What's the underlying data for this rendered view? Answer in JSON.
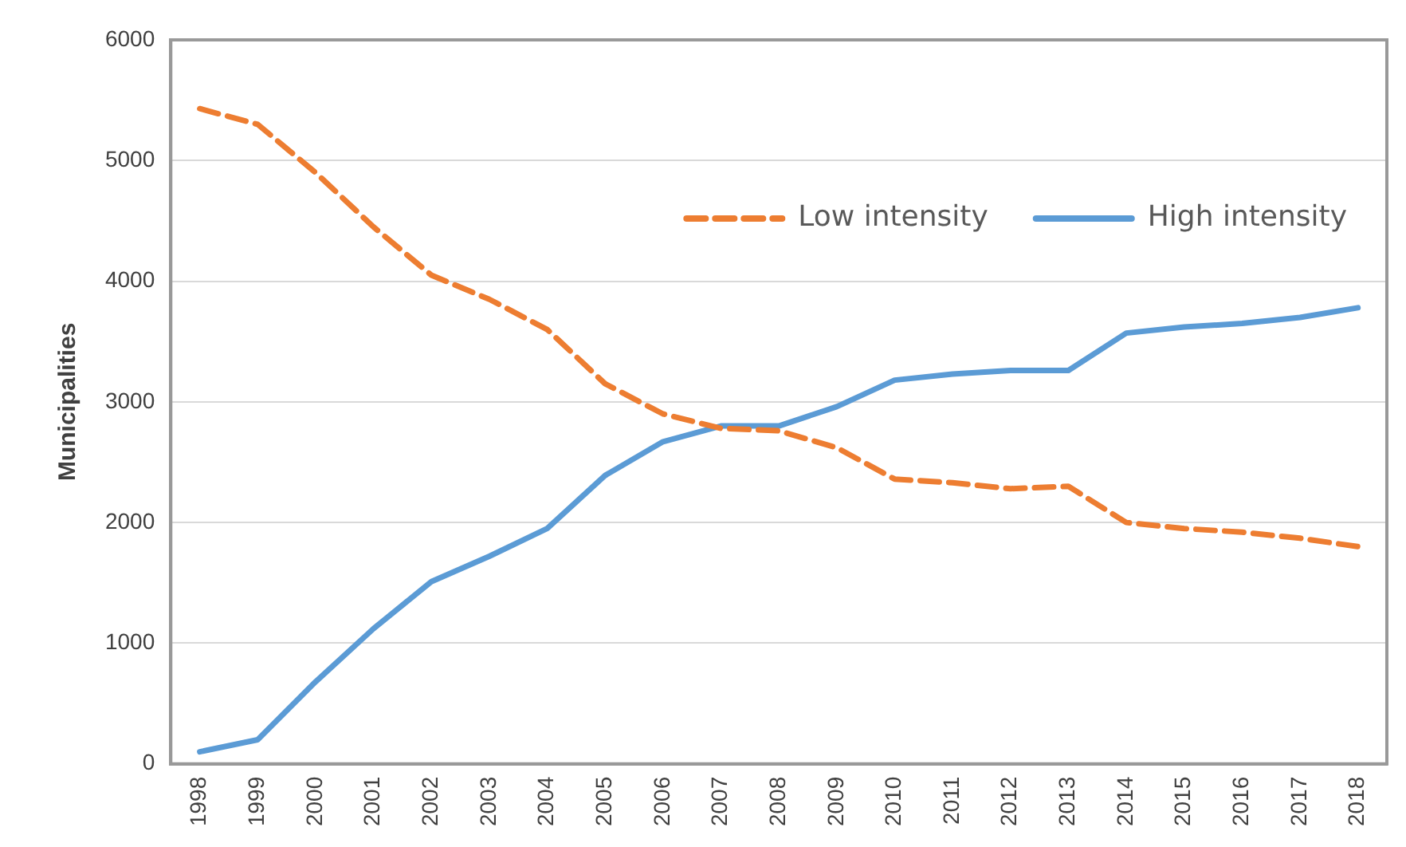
{
  "chart_data": {
    "type": "line",
    "ylabel": "Municipalities",
    "categories": [
      "1998",
      "1999",
      "2000",
      "2001",
      "2002",
      "2003",
      "2004",
      "2005",
      "2006",
      "2007",
      "2008",
      "2009",
      "2010",
      "2011",
      "2012",
      "2013",
      "2014",
      "2015",
      "2016",
      "2017",
      "2018"
    ],
    "series": [
      {
        "name": "Low intensity",
        "color": "#ed7d31",
        "line_style": "dashed",
        "values": [
          5430,
          5300,
          4900,
          4450,
          4050,
          3850,
          3600,
          3150,
          2900,
          2780,
          2760,
          2620,
          2360,
          2330,
          2280,
          2300,
          2000,
          1950,
          1920,
          1870,
          1800
        ]
      },
      {
        "name": "High intensity",
        "color": "#5b9bd5",
        "line_style": "solid",
        "values": [
          100,
          200,
          680,
          1120,
          1510,
          1720,
          1950,
          2390,
          2670,
          2800,
          2800,
          2960,
          3180,
          3230,
          3260,
          3260,
          3570,
          3620,
          3650,
          3700,
          3780
        ]
      }
    ],
    "ylim": [
      0,
      6000
    ],
    "yticks": [
      0,
      1000,
      2000,
      3000,
      4000,
      5000,
      6000
    ],
    "grid": "y",
    "legend": "top right",
    "marker": "none"
  }
}
